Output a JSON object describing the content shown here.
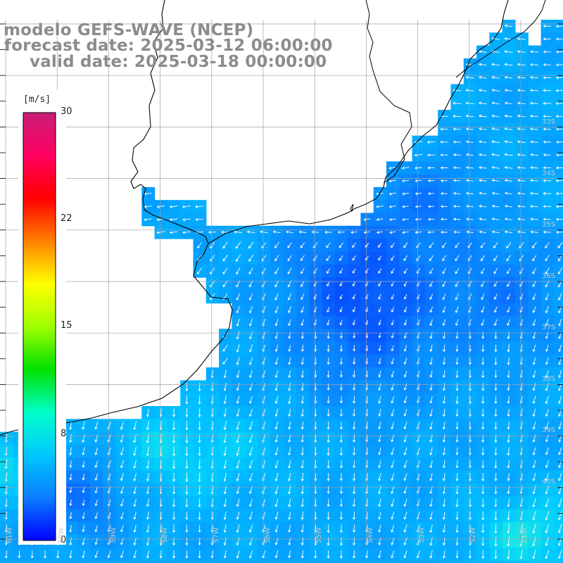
{
  "titles": {
    "model": "modelo GEFS-WAVE (NCEP)",
    "forecast": "forecast date: 2025-03-12 06:00:00",
    "valid": "valid date: 2025-03-18 00:00:00"
  },
  "colorbar": {
    "unit": "[m/s]",
    "ticks": [
      {
        "value": 30,
        "label": "30"
      },
      {
        "value": 22,
        "label": "22"
      },
      {
        "value": 15,
        "label": "15"
      },
      {
        "value": 8,
        "label": "8"
      },
      {
        "value": 0,
        "label": "0"
      }
    ],
    "min": 0,
    "max": 30,
    "colors": [
      "#0000ff",
      "#0a7dff",
      "#00c8ff",
      "#00ffc8",
      "#00e000",
      "#a0ff00",
      "#ffff00",
      "#ff8000",
      "#ff0000",
      "#ff0060",
      "#c81e78"
    ]
  },
  "lat_labels": [
    "33S",
    "34S",
    "35S",
    "36S",
    "37S",
    "38S",
    "39S",
    "40S"
  ],
  "lon_labels": [
    "61W",
    "60W",
    "59W",
    "58W",
    "57W",
    "56W",
    "55W",
    "54W",
    "53W",
    "52W",
    "51W"
  ],
  "map_colors": {
    "land": "#ffffff",
    "coast": "#000000",
    "grid": "#a0a0a0",
    "arrow": "#ffffff"
  }
}
